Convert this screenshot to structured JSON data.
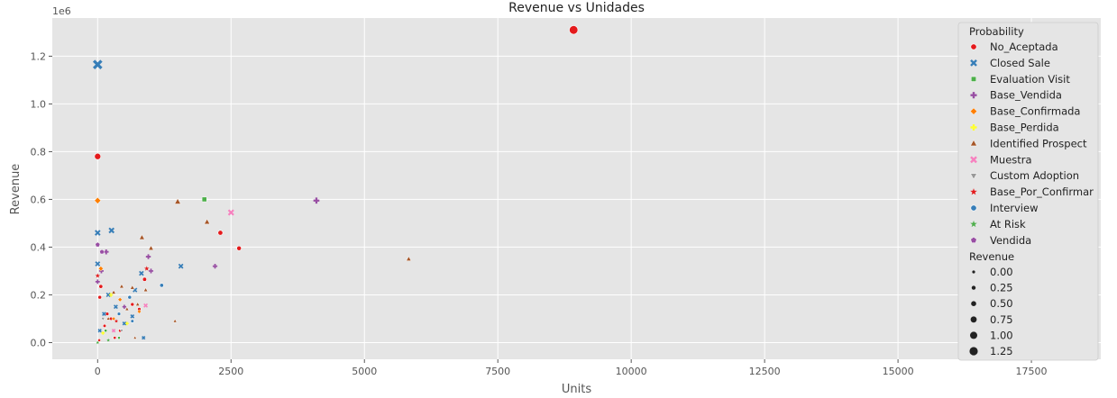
{
  "chart_data": {
    "type": "scatter",
    "title": "Revenue vs Unidades",
    "xlabel": "Units",
    "ylabel": "Revenue",
    "y_offset_label": "1e6",
    "xlim": [
      -850,
      18800
    ],
    "ylim": [
      -0.07,
      1.36
    ],
    "x_ticks": [
      0,
      2500,
      5000,
      7500,
      10000,
      12500,
      15000,
      17500
    ],
    "x_tick_labels": [
      "0",
      "2500",
      "5000",
      "7500",
      "10000",
      "12500",
      "15000",
      "17500"
    ],
    "y_ticks": [
      0.0,
      0.2,
      0.4,
      0.6,
      0.8,
      1.0,
      1.2
    ],
    "y_tick_labels": [
      "0.0",
      "0.2",
      "0.4",
      "0.6",
      "0.8",
      "1.0",
      "1.2"
    ],
    "grid": true,
    "legend_position": "right",
    "legend_title": "Probability",
    "size_legend_title": "Revenue",
    "size_legend": [
      {
        "label": "0.00",
        "value": 0.0
      },
      {
        "label": "0.25",
        "value": 0.25
      },
      {
        "label": "0.50",
        "value": 0.5
      },
      {
        "label": "0.75",
        "value": 0.75
      },
      {
        "label": "1.00",
        "value": 1.0
      },
      {
        "label": "1.25",
        "value": 1.25
      }
    ],
    "series": [
      {
        "name": "No_Aceptada",
        "color": "#e41a1c",
        "marker": "circle",
        "points": [
          [
            8920,
            1.31
          ],
          [
            0,
            0.78
          ],
          [
            2650,
            0.395
          ],
          [
            2300,
            0.46
          ],
          [
            880,
            0.265
          ],
          [
            60,
            0.235
          ],
          [
            40,
            0.19
          ],
          [
            180,
            0.12
          ],
          [
            130,
            0.07
          ],
          [
            420,
            0.05
          ],
          [
            250,
            0.1
          ],
          [
            650,
            0.16
          ],
          [
            780,
            0.14
          ],
          [
            320,
            0.02
          ],
          [
            30,
            0.01
          ]
        ]
      },
      {
        "name": "Closed Sale",
        "color": "#377eb8",
        "marker": "x",
        "points": [
          [
            0,
            1.165
          ],
          [
            0,
            0.46
          ],
          [
            0,
            0.33
          ],
          [
            260,
            0.47
          ],
          [
            1560,
            0.32
          ],
          [
            820,
            0.29
          ],
          [
            700,
            0.22
          ],
          [
            340,
            0.15
          ],
          [
            120,
            0.12
          ],
          [
            500,
            0.08
          ],
          [
            860,
            0.02
          ],
          [
            40,
            0.05
          ],
          [
            650,
            0.11
          ],
          [
            200,
            0.2
          ]
        ]
      },
      {
        "name": "Evaluation Visit",
        "color": "#4daf4a",
        "marker": "square",
        "points": [
          [
            2000,
            0.6
          ],
          [
            400,
            0.02
          ],
          [
            150,
            0.05
          ]
        ]
      },
      {
        "name": "Base_Vendida",
        "color": "#984ea3",
        "marker": "plus",
        "points": [
          [
            4100,
            0.595
          ],
          [
            2200,
            0.32
          ],
          [
            950,
            0.36
          ],
          [
            1000,
            0.3
          ],
          [
            160,
            0.38
          ],
          [
            70,
            0.3
          ],
          [
            500,
            0.15
          ],
          [
            0,
            0.255
          ]
        ]
      },
      {
        "name": "Base_Confirmada",
        "color": "#ff7f00",
        "marker": "diamond",
        "points": [
          [
            0,
            0.595
          ],
          [
            60,
            0.31
          ],
          [
            420,
            0.18
          ],
          [
            780,
            0.13
          ],
          [
            300,
            0.1
          ]
        ]
      },
      {
        "name": "Base_Perdida",
        "color": "#ffff33",
        "marker": "plus",
        "points": [
          [
            250,
            0.2
          ],
          [
            550,
            0.08
          ],
          [
            100,
            0.04
          ]
        ]
      },
      {
        "name": "Identified Prospect",
        "color": "#a65628",
        "marker": "triangle",
        "points": [
          [
            5830,
            0.35
          ],
          [
            1500,
            0.59
          ],
          [
            2050,
            0.505
          ],
          [
            830,
            0.44
          ],
          [
            1000,
            0.395
          ],
          [
            1450,
            0.09
          ],
          [
            450,
            0.235
          ],
          [
            650,
            0.23
          ],
          [
            900,
            0.22
          ],
          [
            300,
            0.21
          ],
          [
            750,
            0.16
          ],
          [
            550,
            0.14
          ],
          [
            200,
            0.1
          ],
          [
            700,
            0.02
          ]
        ]
      },
      {
        "name": "Muestra",
        "color": "#f781bf",
        "marker": "x",
        "points": [
          [
            2500,
            0.545
          ],
          [
            900,
            0.155
          ],
          [
            300,
            0.05
          ]
        ]
      },
      {
        "name": "Custom Adoption",
        "color": "#999999",
        "marker": "triangle-down",
        "points": [
          [
            100,
            0.1
          ],
          [
            450,
            0.05
          ]
        ]
      },
      {
        "name": "Base_Por_Confirmar",
        "color": "#e41a1c",
        "marker": "star",
        "points": [
          [
            920,
            0.31
          ],
          [
            0,
            0.28
          ],
          [
            350,
            0.09
          ]
        ]
      },
      {
        "name": "Interview",
        "color": "#377eb8",
        "marker": "circle",
        "points": [
          [
            1200,
            0.24
          ],
          [
            600,
            0.19
          ],
          [
            400,
            0.12
          ],
          [
            650,
            0.09
          ]
        ]
      },
      {
        "name": "At Risk",
        "color": "#4daf4a",
        "marker": "star",
        "points": [
          [
            0,
            0.0
          ],
          [
            200,
            0.01
          ]
        ]
      },
      {
        "name": "Vendida",
        "color": "#984ea3",
        "marker": "pentagon",
        "points": [
          [
            0,
            0.41
          ],
          [
            80,
            0.38
          ]
        ]
      }
    ]
  }
}
